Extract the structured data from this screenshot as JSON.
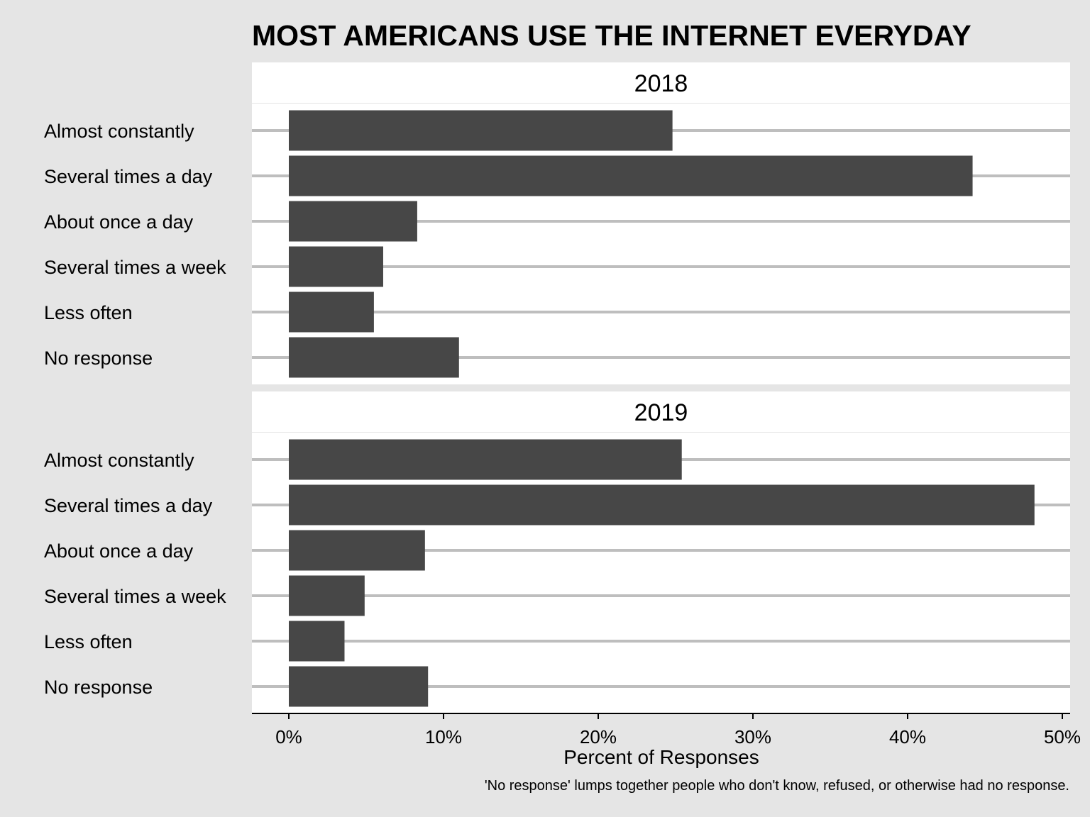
{
  "chart_data": {
    "type": "bar",
    "orientation": "horizontal",
    "title": "MOST AMERICANS USE THE INTERNET EVERYDAY",
    "xlabel": "Percent of Responses",
    "caption": "'No response' lumps together people who don't know, refused, or otherwise had no response.",
    "xlim": [
      0,
      50
    ],
    "x_ticks": [
      0,
      10,
      20,
      30,
      40,
      50
    ],
    "x_tick_labels": [
      "0%",
      "10%",
      "20%",
      "30%",
      "40%",
      "50%"
    ],
    "categories": [
      "Almost constantly",
      "Several times a day",
      "About once a day",
      "Several times a week",
      "Less often",
      "No response"
    ],
    "facets": [
      {
        "label": "2018",
        "values": [
          24.8,
          44.2,
          8.3,
          6.1,
          5.5,
          11.0
        ]
      },
      {
        "label": "2019",
        "values": [
          25.4,
          48.2,
          8.8,
          4.9,
          3.6,
          9.0
        ]
      }
    ],
    "grid": true,
    "colors": {
      "bar": "#474747",
      "gridline": "#bebebe",
      "panel": "#ffffff",
      "background": "#e5e5e5"
    }
  }
}
